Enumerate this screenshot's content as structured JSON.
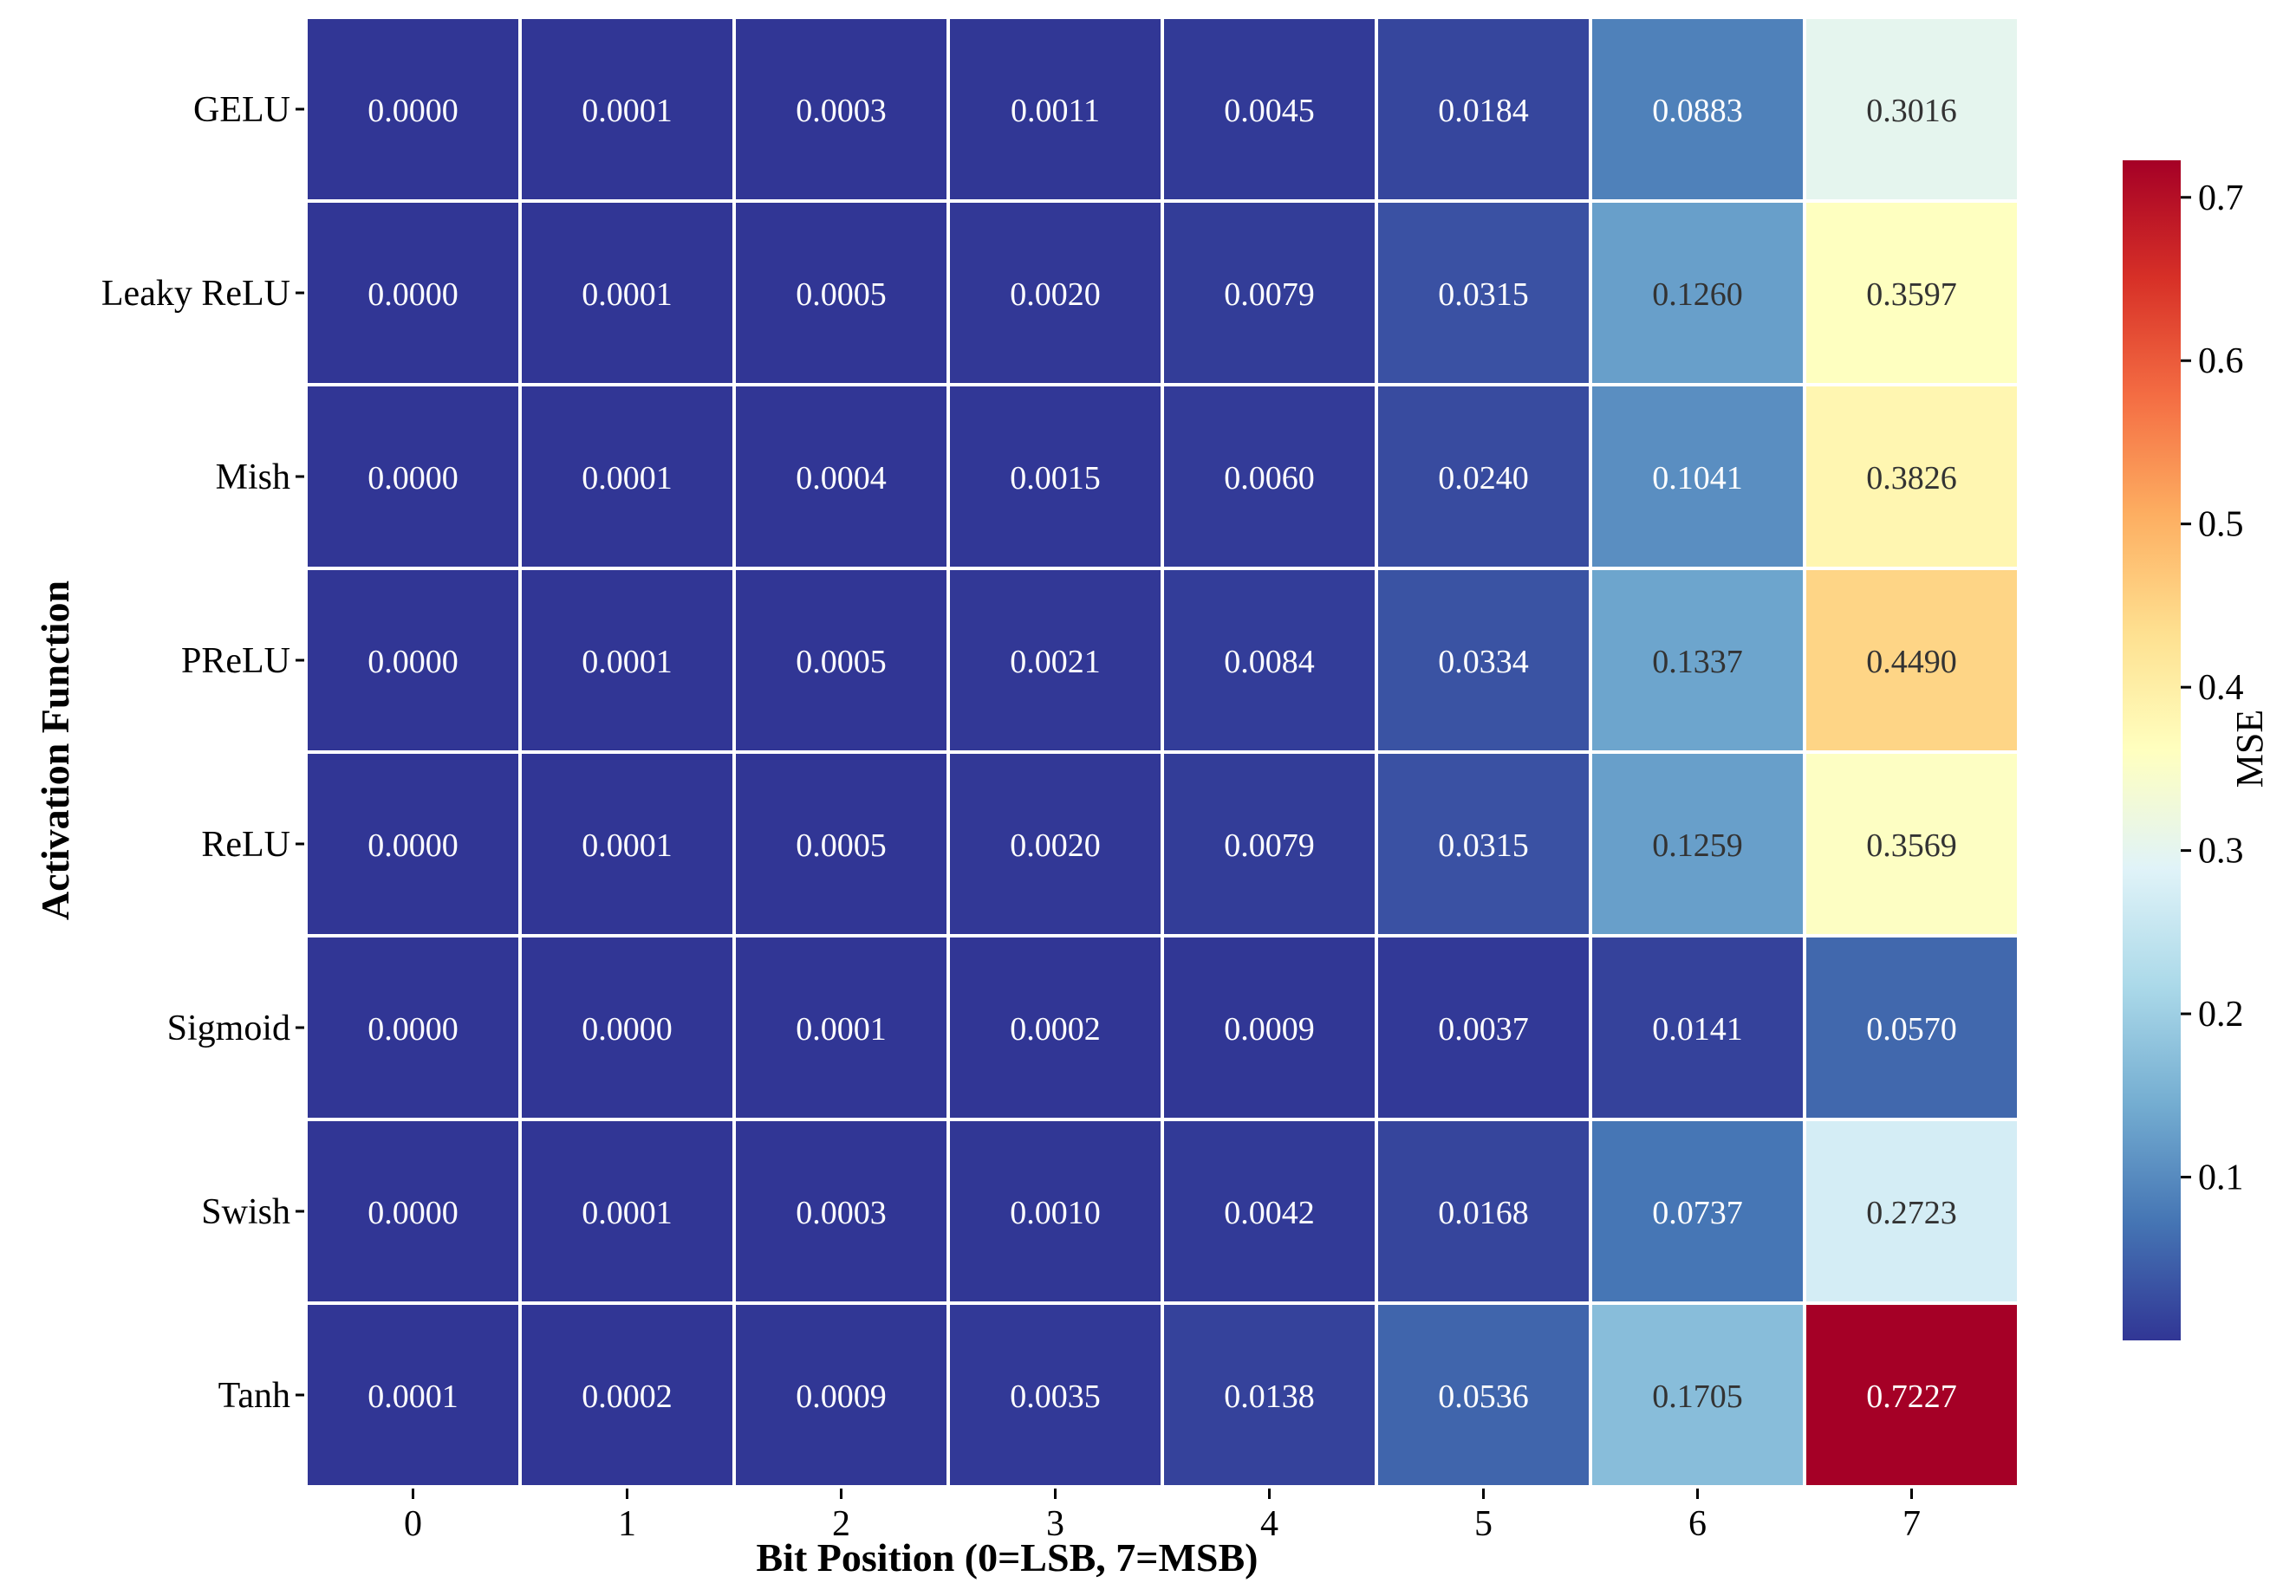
{
  "chart_data": {
    "type": "heatmap",
    "title": "",
    "xlabel": "Bit Position (0=LSB, 7=MSB)",
    "ylabel": "Activation Function",
    "x_categories": [
      "0",
      "1",
      "2",
      "3",
      "4",
      "5",
      "6",
      "7"
    ],
    "y_categories": [
      "GELU",
      "Leaky ReLU",
      "Mish",
      "PReLU",
      "ReLU",
      "Sigmoid",
      "Swish",
      "Tanh"
    ],
    "values": [
      [
        0.0,
        0.0001,
        0.0003,
        0.0011,
        0.0045,
        0.0184,
        0.0883,
        0.3016
      ],
      [
        0.0,
        0.0001,
        0.0005,
        0.002,
        0.0079,
        0.0315,
        0.126,
        0.3597
      ],
      [
        0.0,
        0.0001,
        0.0004,
        0.0015,
        0.006,
        0.024,
        0.1041,
        0.3826
      ],
      [
        0.0,
        0.0001,
        0.0005,
        0.0021,
        0.0084,
        0.0334,
        0.1337,
        0.449
      ],
      [
        0.0,
        0.0001,
        0.0005,
        0.002,
        0.0079,
        0.0315,
        0.1259,
        0.3569
      ],
      [
        0.0,
        0.0,
        0.0001,
        0.0002,
        0.0009,
        0.0037,
        0.0141,
        0.057
      ],
      [
        0.0,
        0.0001,
        0.0003,
        0.001,
        0.0042,
        0.0168,
        0.0737,
        0.2723
      ],
      [
        0.0001,
        0.0002,
        0.0009,
        0.0035,
        0.0138,
        0.0536,
        0.1705,
        0.7227
      ]
    ],
    "value_format_decimals": 4,
    "colormap": "RdYlBu_r",
    "colormap_stops": [
      "#313695",
      "#4575b4",
      "#74add1",
      "#abd9e9",
      "#e0f3f8",
      "#ffffbf",
      "#fee090",
      "#fdae61",
      "#f46d43",
      "#d73027",
      "#a50026"
    ],
    "vmin": 0.0,
    "vmax": 0.7227,
    "colorbar": {
      "label": "MSE",
      "ticks": [
        0.1,
        0.2,
        0.3,
        0.4,
        0.5,
        0.6,
        0.7
      ],
      "tick_labels": [
        "0.1",
        "0.2",
        "0.3",
        "0.4",
        "0.5",
        "0.6",
        "0.7"
      ]
    },
    "grid_lines_color": "#ffffff",
    "legend": "colorbar-right"
  }
}
